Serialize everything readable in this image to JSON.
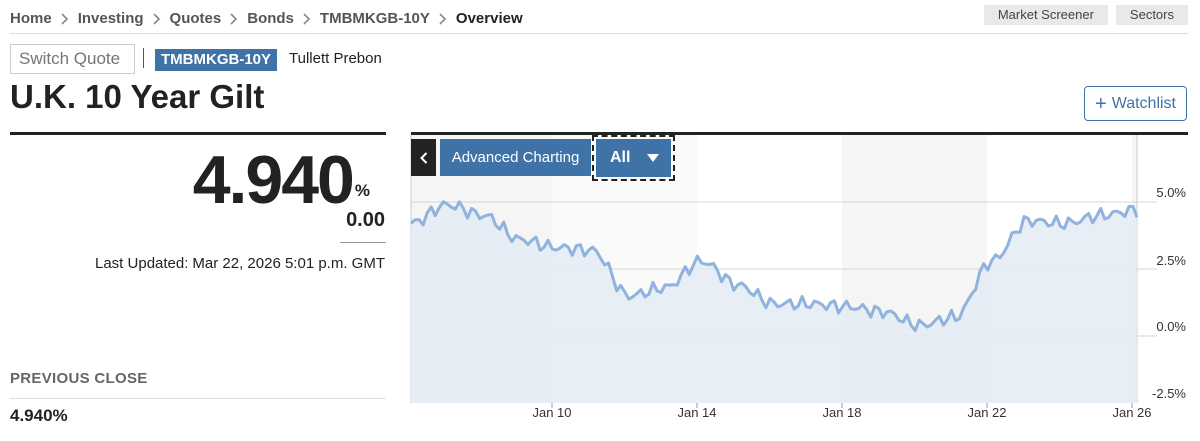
{
  "breadcrumb": {
    "items": [
      "Home",
      "Investing",
      "Quotes",
      "Bonds",
      "TMBMKGB-10Y",
      "Overview"
    ]
  },
  "top_buttons": {
    "market_screener": "Market Screener",
    "sectors": "Sectors"
  },
  "quote": {
    "switch_placeholder": "Switch Quote",
    "ticker": "TMBMKGB-10Y",
    "source": "Tullett Prebon",
    "title": "U.K. 10 Year Gilt",
    "watchlist_label": "Watchlist",
    "price": "4.940",
    "price_unit": "%",
    "change": "0.00",
    "last_updated_label": "Last Updated:",
    "last_updated_value": "Mar 22, 2026 5:01 p.m. GMT",
    "previous_close_label": "PREVIOUS CLOSE",
    "previous_close_value": "4.940%"
  },
  "chart_controls": {
    "advanced_label": "Advanced Charting",
    "range_selected": "All"
  },
  "colors": {
    "accent": "#3f73a7",
    "line": "#8fb3dc",
    "area": "#e4ebf3"
  },
  "chart_data": {
    "type": "area",
    "x": [
      "Jan 6",
      "Jan 7",
      "Jan 8",
      "Jan 9",
      "Jan 10",
      "Jan 11",
      "Jan 12",
      "Jan 13",
      "Jan 14",
      "Jan 15",
      "Jan 16",
      "Jan 17",
      "Jan 18",
      "Jan 19",
      "Jan 20",
      "Jan 21",
      "Jan 22",
      "Jan 23",
      "Jan 24",
      "Jan 25",
      "Jan 26"
    ],
    "values": [
      4.2,
      4.9,
      4.5,
      3.6,
      3.3,
      3.2,
      1.5,
      1.8,
      2.8,
      1.9,
      1.2,
      1.2,
      1.1,
      0.9,
      0.4,
      0.7,
      2.8,
      4.3,
      4.2,
      4.5,
      4.7
    ],
    "x_ticks": [
      "Jan 10",
      "Jan 14",
      "Jan 18",
      "Jan 22",
      "Jan 26"
    ],
    "y_ticks": [
      "5.0%",
      "2.5%",
      "0.0%",
      "-2.5%"
    ],
    "ylim": [
      -2.5,
      5.0
    ],
    "grid": true
  }
}
